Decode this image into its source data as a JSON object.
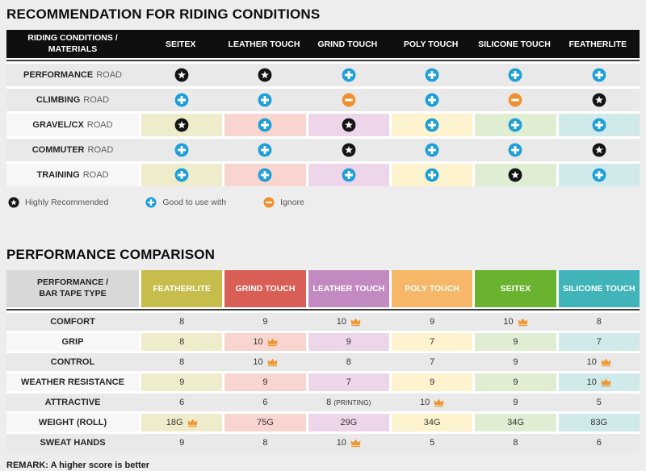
{
  "colors": {
    "page_bg": "#ededed",
    "table1_header_bg": "#0f0f0f",
    "plain_row_bg": "#e9e9e9",
    "striped_label_bg": "#f7f7f7",
    "cell_palette": [
      "#eeeccb",
      "#f8d6cf",
      "#eed6ea",
      "#fdf3cf",
      "#dfedd2",
      "#d0e9ea"
    ],
    "icon_star": "#141414",
    "icon_plus": "#1d9fd9",
    "icon_minus": "#ef9131",
    "icon_crown": "#f0952e"
  },
  "recommendation_table": {
    "title": "RECOMMENDATION FOR RIDING CONDITIONS",
    "header": {
      "label_line1": "RIDING CONDITIONS /",
      "label_line2": "MATERIALS",
      "columns": [
        "SEITEX",
        "LEATHER TOUCH",
        "GRIND TOUCH",
        "POLY TOUCH",
        "SILICONE TOUCH",
        "FEATHERLITE"
      ]
    },
    "rows": [
      {
        "condition": "PERFORMANCE",
        "suffix": "ROAD",
        "striped": false,
        "cells": [
          "star",
          "star",
          "plus",
          "plus",
          "plus",
          "plus"
        ]
      },
      {
        "condition": "CLIMBING",
        "suffix": "ROAD",
        "striped": false,
        "cells": [
          "plus",
          "plus",
          "minus",
          "plus",
          "minus",
          "star"
        ]
      },
      {
        "condition": "GRAVEL/CX",
        "suffix": "ROAD",
        "striped": true,
        "cells": [
          "star",
          "plus",
          "star",
          "plus",
          "plus",
          "plus"
        ]
      },
      {
        "condition": "COMMUTER",
        "suffix": "ROAD",
        "striped": false,
        "cells": [
          "plus",
          "plus",
          "star",
          "plus",
          "plus",
          "star"
        ]
      },
      {
        "condition": "TRAINING",
        "suffix": "ROAD",
        "striped": true,
        "cells": [
          "plus",
          "plus",
          "plus",
          "plus",
          "star",
          "plus"
        ]
      }
    ],
    "legend": [
      {
        "icon": "star",
        "label": "Highly Recommended"
      },
      {
        "icon": "plus",
        "label": "Good to use with"
      },
      {
        "icon": "minus",
        "label": "Ignore"
      }
    ]
  },
  "performance_table": {
    "title": "PERFORMANCE COMPARISON",
    "header": {
      "label_line1": "PERFORMANCE /",
      "label_line2": "BAR TAPE TYPE",
      "columns": [
        {
          "label": "FEATHERLITE",
          "color": "#c6bd4c"
        },
        {
          "label": "GRIND TOUCH",
          "color": "#d95e55"
        },
        {
          "label": "LEATHER TOUCH",
          "color": "#c28ac1"
        },
        {
          "label": "POLY TOUCH",
          "color": "#f6b768"
        },
        {
          "label": "SEITEX",
          "color": "#6ab32f"
        },
        {
          "label": "SILICONE TOUCH",
          "color": "#41b4ba"
        }
      ]
    },
    "rows": [
      {
        "metric": "COMFORT",
        "striped": false,
        "cells": [
          {
            "value": "8"
          },
          {
            "value": "9"
          },
          {
            "value": "10",
            "crown": true
          },
          {
            "value": "9"
          },
          {
            "value": "10",
            "crown": true
          },
          {
            "value": "8"
          }
        ]
      },
      {
        "metric": "GRIP",
        "striped": true,
        "cells": [
          {
            "value": "8"
          },
          {
            "value": "10",
            "crown": true
          },
          {
            "value": "9"
          },
          {
            "value": "7"
          },
          {
            "value": "9"
          },
          {
            "value": "7"
          }
        ]
      },
      {
        "metric": "CONTROL",
        "striped": false,
        "cells": [
          {
            "value": "8"
          },
          {
            "value": "10",
            "crown": true
          },
          {
            "value": "8"
          },
          {
            "value": "7"
          },
          {
            "value": "9"
          },
          {
            "value": "10",
            "crown": true
          }
        ]
      },
      {
        "metric": "WEATHER RESISTANCE",
        "striped": true,
        "cells": [
          {
            "value": "9"
          },
          {
            "value": "9"
          },
          {
            "value": "7"
          },
          {
            "value": "9"
          },
          {
            "value": "9"
          },
          {
            "value": "10",
            "crown": true
          }
        ]
      },
      {
        "metric": "ATTRACTIVE",
        "striped": false,
        "cells": [
          {
            "value": "6"
          },
          {
            "value": "6"
          },
          {
            "value": "8",
            "note": "(PRINTING)"
          },
          {
            "value": "10",
            "crown": true
          },
          {
            "value": "9"
          },
          {
            "value": "5"
          }
        ]
      },
      {
        "metric": "WEIGHT (ROLL)",
        "striped": true,
        "cells": [
          {
            "value": "18G",
            "crown": true
          },
          {
            "value": "75G"
          },
          {
            "value": "29G"
          },
          {
            "value": "34G"
          },
          {
            "value": "34G"
          },
          {
            "value": "83G"
          }
        ]
      },
      {
        "metric": "SWEAT HANDS",
        "striped": false,
        "cells": [
          {
            "value": "9"
          },
          {
            "value": "8"
          },
          {
            "value": "10",
            "crown": true
          },
          {
            "value": "5"
          },
          {
            "value": "8"
          },
          {
            "value": "6"
          }
        ]
      }
    ],
    "remark": "REMARK: A higher score is better"
  }
}
